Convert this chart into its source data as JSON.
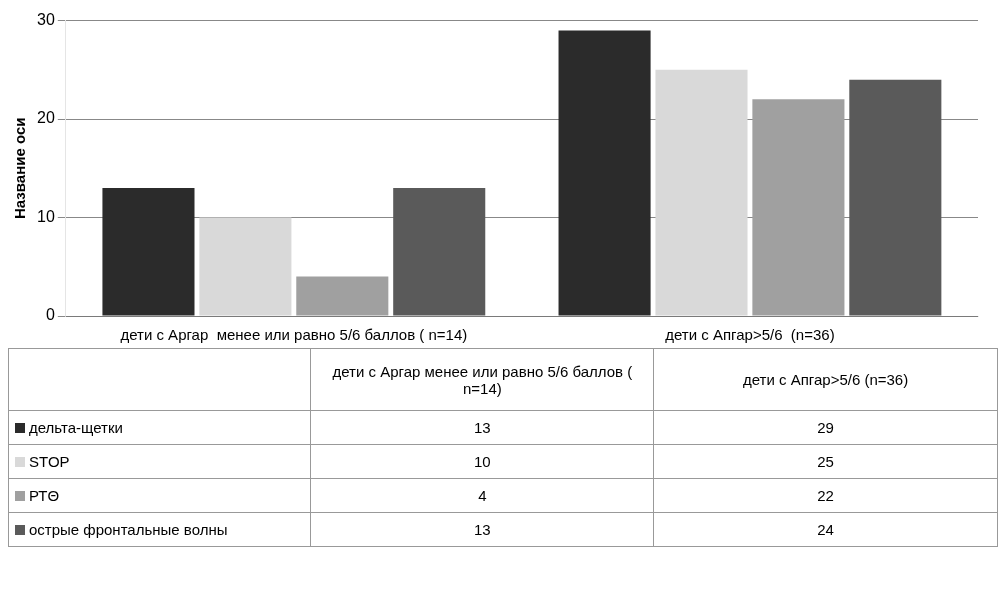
{
  "chart_data": {
    "type": "bar",
    "ylabel": "Название оси",
    "categories": [
      "дети с Аргар  менее или равно 5/6 баллов ( n=14)",
      "дети с Апгар>5/6  (n=36)"
    ],
    "series": [
      {
        "name": "дельта-щетки",
        "color": "#2b2b2b",
        "values": [
          13,
          29
        ]
      },
      {
        "name": "STOP",
        "color": "#d9d9d9",
        "values": [
          10,
          25
        ]
      },
      {
        "name": "РТΘ",
        "color": "#a0a0a0",
        "values": [
          4,
          22
        ]
      },
      {
        "name": "острые фронтальные волны",
        "color": "#5a5a5a",
        "values": [
          13,
          24
        ]
      }
    ],
    "ylim": [
      0,
      30
    ],
    "yticks": [
      0,
      10,
      20,
      30
    ],
    "grid": "y",
    "legend": "bottom",
    "data_labels": true
  }
}
